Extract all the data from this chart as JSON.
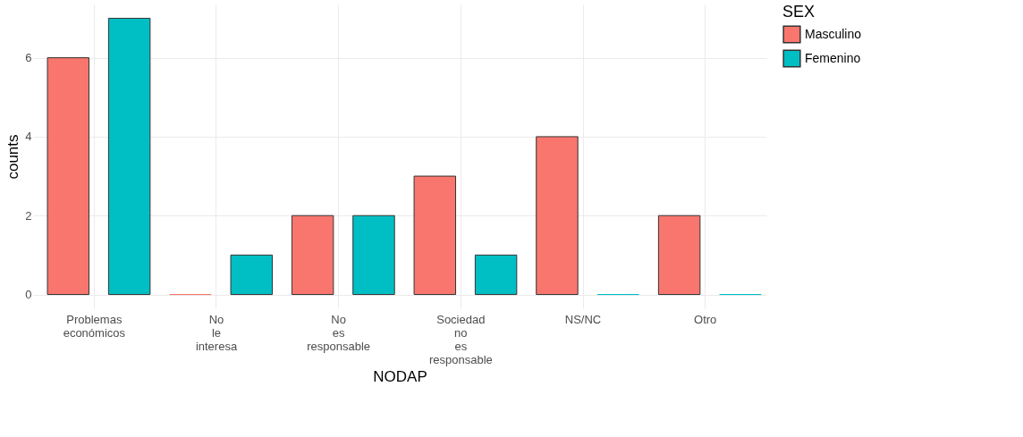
{
  "chart_data": {
    "type": "bar",
    "xlabel": "NODAP",
    "ylabel": "counts",
    "legend_title": "SEX",
    "categories": [
      "Problemas económicos",
      "No le interesa",
      "No es responsable",
      "Sociedad no es responsable",
      "NS/NC",
      "Otro"
    ],
    "series": [
      {
        "name": "Masculino",
        "color": "#f8766d",
        "values": [
          6,
          0,
          2,
          3,
          4,
          2
        ]
      },
      {
        "name": "Femenino",
        "color": "#00bfc4",
        "values": [
          7,
          1,
          2,
          1,
          0,
          0
        ]
      }
    ],
    "ylim": [
      -0.35,
      7.35
    ],
    "yticks": [
      0,
      2,
      4,
      6
    ],
    "grid": true,
    "legend": "right"
  }
}
